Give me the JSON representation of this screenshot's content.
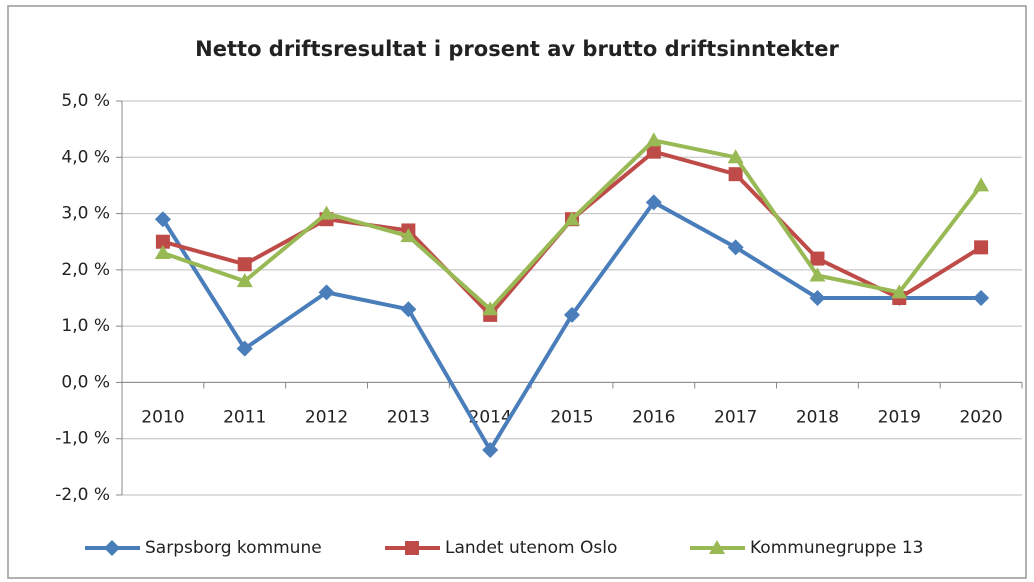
{
  "chart_data": {
    "type": "line",
    "title": "Netto driftsresultat i prosent av brutto driftsinntekter",
    "categories": [
      "2010",
      "2011",
      "2012",
      "2013",
      "2014",
      "2015",
      "2016",
      "2017",
      "2018",
      "2019",
      "2020"
    ],
    "series": [
      {
        "name": "Sarpsborg kommune",
        "color": "#4a7ebb",
        "values": [
          2.9,
          0.6,
          1.6,
          1.3,
          -1.2,
          1.2,
          3.2,
          2.4,
          1.5,
          1.5,
          1.5
        ]
      },
      {
        "name": "Landet utenom Oslo",
        "color": "#be4b48",
        "values": [
          2.5,
          2.1,
          2.9,
          2.7,
          1.2,
          2.9,
          4.1,
          3.7,
          2.2,
          1.5,
          2.4
        ]
      },
      {
        "name": "Kommunegruppe 13",
        "color": "#98b954",
        "values": [
          2.3,
          1.8,
          3.0,
          2.6,
          1.3,
          2.9,
          4.3,
          4.0,
          1.9,
          1.6,
          3.5
        ]
      }
    ],
    "ylim": [
      -2,
      5
    ],
    "yticks": [
      {
        "value": -2,
        "label": "-2,0 %"
      },
      {
        "value": -1,
        "label": "-1,0 %"
      },
      {
        "value": 0,
        "label": "0,0 %"
      },
      {
        "value": 1,
        "label": "1,0 %"
      },
      {
        "value": 2,
        "label": "2,0 %"
      },
      {
        "value": 3,
        "label": "3,0 %"
      },
      {
        "value": 4,
        "label": "4,0 %"
      },
      {
        "value": 5,
        "label": "5,0 %"
      }
    ],
    "grid": true,
    "legend": "bottom"
  }
}
